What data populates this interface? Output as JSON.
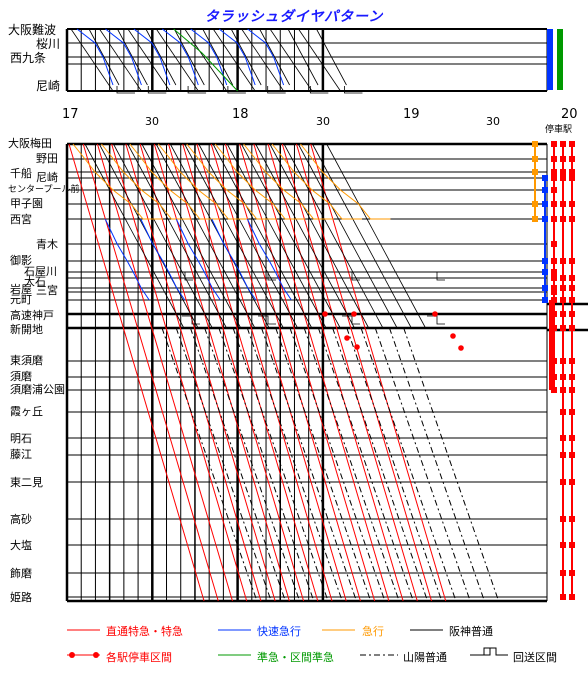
{
  "title": "タラッシュダイヤパターン",
  "top_stations": [
    "大阪難波",
    "桜川",
    "西九条",
    "尼崎"
  ],
  "main_stations": [
    "大阪梅田",
    "野田",
    "千船",
    "尼崎",
    "センタープール前",
    "甲子園",
    "西宮",
    "青木",
    "御影",
    "石屋川",
    "大石",
    "岩屋",
    "三宮",
    "元町",
    "高速神戸",
    "新開地",
    "東須磨",
    "須磨",
    "須磨浦公園",
    "霞ヶ丘",
    "明石",
    "藤江",
    "東二見",
    "高砂",
    "大塩",
    "飾磨",
    "姫路"
  ],
  "hours": [
    "17",
    "18",
    "19",
    "20"
  ],
  "half_label": "30",
  "stop_header": "停車駅",
  "legend": {
    "rapid_ltd": "直通特急・特急",
    "rapid_exp": "快速急行",
    "express": "急行",
    "local": "阪神普通",
    "each_stop": "各駅停車区間",
    "semi_exp": "準急・区間準急",
    "sanyo_local": "山陽普通",
    "deadhead": "回送区間"
  },
  "colors": {
    "red": "#ff0000",
    "blue": "#0033ff",
    "orange": "#ff9900",
    "green": "#009900",
    "black": "#000000",
    "title": "#1a1aff"
  }
}
